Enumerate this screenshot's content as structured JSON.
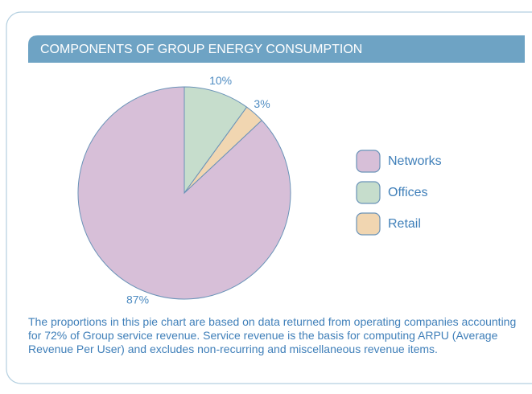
{
  "chart_data": {
    "type": "pie",
    "title": "COMPONENTS OF GROUP ENERGY CONSUMPTION",
    "categories": [
      "Networks",
      "Offices",
      "Retail"
    ],
    "values": [
      87,
      10,
      3
    ],
    "value_labels": [
      "87%",
      "10%",
      "3%"
    ],
    "colors": [
      "#d7bfd8",
      "#c6ddcc",
      "#f1d6b1"
    ],
    "legend": "right",
    "note": "The proportions in this pie chart are based on data returned from operating companies accounting for 72% of Group service revenue. Service revenue is the basis for computing ARPU (Average Revenue Per User) and excludes non-recurring and miscellaneous revenue items."
  }
}
